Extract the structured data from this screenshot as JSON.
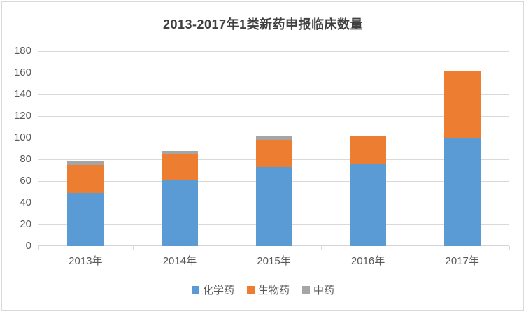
{
  "chart_data": {
    "type": "bar",
    "stacked": true,
    "title": "2013-2017年1类新药申报临床数量",
    "categories": [
      "2013年",
      "2014年",
      "2015年",
      "2016年",
      "2017年"
    ],
    "series": [
      {
        "key": "chemical-drug",
        "name": "化学药",
        "color": "#5B9BD5",
        "values": [
          49,
          61,
          73,
          76,
          100
        ]
      },
      {
        "key": "biological-drug",
        "name": "生物药",
        "color": "#ED7D31",
        "values": [
          26,
          24,
          25,
          26,
          61
        ]
      },
      {
        "key": "tcm-drug",
        "name": "中药",
        "color": "#A5A5A5",
        "values": [
          4,
          3,
          3,
          0,
          1
        ]
      }
    ],
    "totals": [
      79,
      88,
      101,
      102,
      162
    ],
    "xlabel": "",
    "ylabel": "",
    "ylim": [
      0,
      180
    ],
    "yticks": [
      0,
      20,
      40,
      60,
      80,
      100,
      120,
      140,
      160,
      180
    ],
    "grid": true,
    "legend_position": "bottom",
    "gridline_color": "#D9D9D9",
    "axis_text_color": "#595959",
    "title_color": "#404040",
    "frame_border_color": "#D9D9D9"
  }
}
